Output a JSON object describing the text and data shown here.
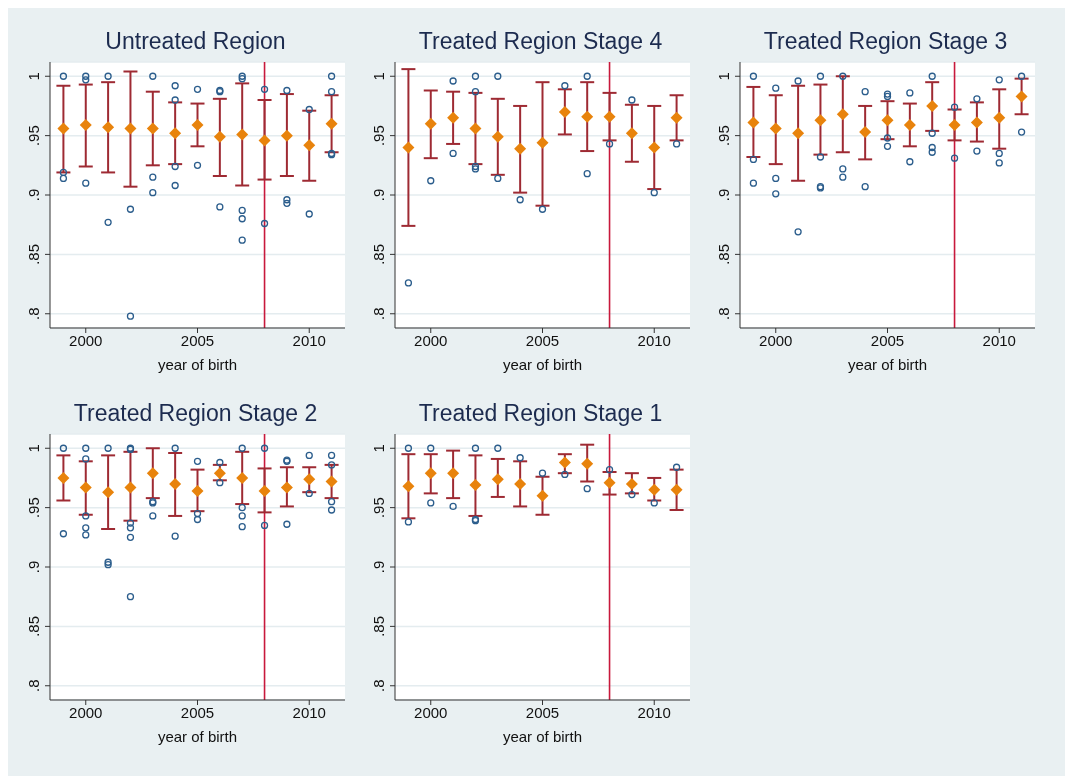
{
  "chart_data": [
    {
      "type": "scatter",
      "title": "Untreated Region",
      "xlabel": "year of birth",
      "xlim": [
        1998.4,
        2011.6
      ],
      "xticks": [
        2000,
        2005,
        2010
      ],
      "ylim": [
        0.788,
        1.012
      ],
      "yticks": [
        {
          "value": 0.8,
          "label": ".8"
        },
        {
          "value": 0.85,
          "label": ".85"
        },
        {
          "value": 0.9,
          "label": ".9"
        },
        {
          "value": 0.95,
          "label": ".95"
        },
        {
          "value": 1,
          "label": "1"
        }
      ],
      "grid": "y",
      "ref_lines": [
        {
          "axis": "x",
          "value": 2008,
          "color": "#c8193c"
        }
      ],
      "series": [
        {
          "type": "scatter",
          "marker": "circle",
          "color": "#2b5d8c",
          "x": [
            1999,
            1999,
            1999,
            2000,
            2000,
            2000,
            2001,
            2001,
            2002,
            2002,
            2003,
            2003,
            2003,
            2004,
            2004,
            2004,
            2004,
            2005,
            2005,
            2006,
            2006,
            2006,
            2007,
            2007,
            2007,
            2007,
            2007,
            2008,
            2008,
            2009,
            2009,
            2009,
            2010,
            2010,
            2011,
            2011,
            2011,
            2011
          ],
          "values": [
            1.0,
            0.919,
            0.914,
            1.0,
            0.997,
            0.91,
            1.0,
            0.877,
            0.888,
            0.798,
            1.0,
            0.915,
            0.902,
            0.992,
            0.98,
            0.924,
            0.908,
            0.989,
            0.925,
            0.988,
            0.987,
            0.89,
            1.0,
            0.998,
            0.887,
            0.88,
            0.862,
            0.989,
            0.876,
            0.988,
            0.896,
            0.893,
            0.972,
            0.884,
            1.0,
            0.987,
            0.935,
            0.934
          ]
        },
        {
          "type": "scatter",
          "marker": "diamond",
          "color": "#e8830c",
          "x": [
            1999,
            2000,
            2001,
            2002,
            2003,
            2004,
            2005,
            2006,
            2007,
            2008,
            2009,
            2010,
            2011
          ],
          "values": [
            0.956,
            0.959,
            0.957,
            0.956,
            0.956,
            0.952,
            0.959,
            0.949,
            0.951,
            0.946,
            0.95,
            0.942,
            0.96
          ],
          "errors": [
            [
              0.919,
              0.992
            ],
            [
              0.924,
              0.993
            ],
            [
              0.919,
              0.995
            ],
            [
              0.907,
              1.004
            ],
            [
              0.925,
              0.987
            ],
            [
              0.926,
              0.978
            ],
            [
              0.941,
              0.977
            ],
            [
              0.916,
              0.981
            ],
            [
              0.908,
              0.994
            ],
            [
              0.913,
              0.98
            ],
            [
              0.916,
              0.985
            ],
            [
              0.912,
              0.971
            ],
            [
              0.936,
              0.984
            ]
          ]
        }
      ]
    },
    {
      "type": "scatter",
      "title": "Treated Region Stage 4",
      "xlabel": "year of birth",
      "xlim": [
        1998.4,
        2011.6
      ],
      "xticks": [
        2000,
        2005,
        2010
      ],
      "ylim": [
        0.788,
        1.012
      ],
      "yticks": [
        {
          "value": 0.8,
          "label": ".8"
        },
        {
          "value": 0.85,
          "label": ".85"
        },
        {
          "value": 0.9,
          "label": ".9"
        },
        {
          "value": 0.95,
          "label": ".95"
        },
        {
          "value": 1,
          "label": "1"
        }
      ],
      "grid": "y",
      "ref_lines": [
        {
          "axis": "x",
          "value": 2008,
          "color": "#c8193c"
        }
      ],
      "series": [
        {
          "type": "scatter",
          "marker": "circle",
          "color": "#2b5d8c",
          "x": [
            1999,
            2000,
            2001,
            2001,
            2002,
            2002,
            2002,
            2002,
            2003,
            2003,
            2004,
            2005,
            2006,
            2007,
            2007,
            2008,
            2009,
            2010,
            2011
          ],
          "values": [
            0.826,
            0.912,
            0.996,
            0.935,
            1.0,
            0.987,
            0.924,
            0.922,
            1.0,
            0.914,
            0.896,
            0.888,
            0.992,
            1.0,
            0.918,
            0.943,
            0.98,
            0.902,
            0.943
          ]
        },
        {
          "type": "scatter",
          "marker": "diamond",
          "color": "#e8830c",
          "x": [
            1999,
            2000,
            2001,
            2002,
            2003,
            2004,
            2005,
            2006,
            2007,
            2008,
            2009,
            2010,
            2011
          ],
          "values": [
            0.94,
            0.96,
            0.965,
            0.956,
            0.949,
            0.939,
            0.944,
            0.97,
            0.966,
            0.966,
            0.952,
            0.94,
            0.965
          ],
          "errors": [
            [
              0.874,
              1.006
            ],
            [
              0.931,
              0.988
            ],
            [
              0.943,
              0.987
            ],
            [
              0.926,
              0.986
            ],
            [
              0.917,
              0.981
            ],
            [
              0.902,
              0.975
            ],
            [
              0.891,
              0.995
            ],
            [
              0.951,
              0.989
            ],
            [
              0.937,
              0.995
            ],
            [
              0.946,
              0.986
            ],
            [
              0.928,
              0.976
            ],
            [
              0.905,
              0.975
            ],
            [
              0.946,
              0.984
            ]
          ]
        }
      ]
    },
    {
      "type": "scatter",
      "title": "Treated Region Stage 3",
      "xlabel": "year of birth",
      "xlim": [
        1998.4,
        2011.6
      ],
      "xticks": [
        2000,
        2005,
        2010
      ],
      "ylim": [
        0.788,
        1.012
      ],
      "yticks": [
        {
          "value": 0.8,
          "label": ".8"
        },
        {
          "value": 0.85,
          "label": ".85"
        },
        {
          "value": 0.9,
          "label": ".9"
        },
        {
          "value": 0.95,
          "label": ".95"
        },
        {
          "value": 1,
          "label": "1"
        }
      ],
      "grid": "y",
      "ref_lines": [
        {
          "axis": "x",
          "value": 2008,
          "color": "#c8193c"
        }
      ],
      "series": [
        {
          "type": "scatter",
          "marker": "circle",
          "color": "#2b5d8c",
          "x": [
            1999,
            1999,
            1999,
            2000,
            2000,
            2000,
            2001,
            2001,
            2002,
            2002,
            2002,
            2002,
            2003,
            2003,
            2003,
            2004,
            2004,
            2005,
            2005,
            2005,
            2005,
            2006,
            2006,
            2007,
            2007,
            2007,
            2007,
            2008,
            2008,
            2009,
            2009,
            2010,
            2010,
            2010,
            2011,
            2011
          ],
          "values": [
            1.0,
            0.93,
            0.91,
            0.99,
            0.914,
            0.901,
            0.996,
            0.869,
            1.0,
            0.932,
            0.907,
            0.906,
            1.0,
            0.922,
            0.915,
            0.987,
            0.907,
            0.985,
            0.983,
            0.948,
            0.941,
            0.986,
            0.928,
            1.0,
            0.952,
            0.94,
            0.936,
            0.974,
            0.931,
            0.981,
            0.937,
            0.997,
            0.935,
            0.927,
            1.0,
            0.953
          ]
        },
        {
          "type": "scatter",
          "marker": "diamond",
          "color": "#e8830c",
          "x": [
            1999,
            2000,
            2001,
            2002,
            2003,
            2004,
            2005,
            2006,
            2007,
            2008,
            2009,
            2010,
            2011
          ],
          "values": [
            0.961,
            0.956,
            0.952,
            0.963,
            0.968,
            0.953,
            0.963,
            0.959,
            0.975,
            0.959,
            0.961,
            0.965,
            0.983
          ],
          "errors": [
            [
              0.932,
              0.991
            ],
            [
              0.926,
              0.984
            ],
            [
              0.912,
              0.992
            ],
            [
              0.934,
              0.993
            ],
            [
              0.936,
              1.0
            ],
            [
              0.93,
              0.975
            ],
            [
              0.947,
              0.979
            ],
            [
              0.941,
              0.977
            ],
            [
              0.954,
              0.995
            ],
            [
              0.946,
              0.972
            ],
            [
              0.945,
              0.978
            ],
            [
              0.939,
              0.989
            ],
            [
              0.968,
              0.998
            ]
          ]
        }
      ]
    },
    {
      "type": "scatter",
      "title": "Treated Region Stage 2",
      "xlabel": "year of birth",
      "xlim": [
        1998.4,
        2011.6
      ],
      "xticks": [
        2000,
        2005,
        2010
      ],
      "ylim": [
        0.788,
        1.012
      ],
      "yticks": [
        {
          "value": 0.8,
          "label": ".8"
        },
        {
          "value": 0.85,
          "label": ".85"
        },
        {
          "value": 0.9,
          "label": ".9"
        },
        {
          "value": 0.95,
          "label": ".95"
        },
        {
          "value": 1,
          "label": "1"
        }
      ],
      "grid": "y",
      "ref_lines": [
        {
          "axis": "x",
          "value": 2008,
          "color": "#c8193c"
        }
      ],
      "series": [
        {
          "type": "scatter",
          "marker": "circle",
          "color": "#2b5d8c",
          "x": [
            1999,
            1999,
            2000,
            2000,
            2000,
            2000,
            2000,
            2001,
            2001,
            2001,
            2002,
            2002,
            2002,
            2002,
            2002,
            2002,
            2003,
            2003,
            2003,
            2004,
            2004,
            2005,
            2005,
            2005,
            2006,
            2006,
            2007,
            2007,
            2007,
            2007,
            2008,
            2008,
            2009,
            2009,
            2009,
            2010,
            2010,
            2011,
            2011,
            2011,
            2011
          ],
          "values": [
            1.0,
            0.928,
            1.0,
            0.991,
            0.943,
            0.933,
            0.927,
            1.0,
            0.904,
            0.902,
            1.0,
            0.999,
            0.937,
            0.933,
            0.925,
            0.875,
            0.955,
            0.954,
            0.943,
            1.0,
            0.926,
            0.989,
            0.945,
            0.94,
            0.988,
            0.971,
            1.0,
            0.95,
            0.943,
            0.934,
            1.0,
            0.935,
            0.99,
            0.989,
            0.936,
            0.994,
            0.962,
            0.994,
            0.986,
            0.955,
            0.948
          ]
        },
        {
          "type": "scatter",
          "marker": "diamond",
          "color": "#e8830c",
          "x": [
            1999,
            2000,
            2001,
            2002,
            2003,
            2004,
            2005,
            2006,
            2007,
            2008,
            2009,
            2010,
            2011
          ],
          "values": [
            0.975,
            0.967,
            0.963,
            0.967,
            0.979,
            0.97,
            0.964,
            0.979,
            0.975,
            0.964,
            0.967,
            0.974,
            0.972
          ],
          "errors": [
            [
              0.956,
              0.994
            ],
            [
              0.944,
              0.989
            ],
            [
              0.932,
              0.994
            ],
            [
              0.939,
              0.997
            ],
            [
              0.958,
              1.0
            ],
            [
              0.943,
              0.996
            ],
            [
              0.947,
              0.982
            ],
            [
              0.973,
              0.986
            ],
            [
              0.953,
              0.997
            ],
            [
              0.946,
              0.983
            ],
            [
              0.951,
              0.984
            ],
            [
              0.963,
              0.984
            ],
            [
              0.958,
              0.986
            ]
          ]
        }
      ]
    },
    {
      "type": "scatter",
      "title": "Treated Region Stage 1",
      "xlabel": "year of birth",
      "xlim": [
        1998.4,
        2011.6
      ],
      "xticks": [
        2000,
        2005,
        2010
      ],
      "ylim": [
        0.788,
        1.012
      ],
      "yticks": [
        {
          "value": 0.8,
          "label": ".8"
        },
        {
          "value": 0.85,
          "label": ".85"
        },
        {
          "value": 0.9,
          "label": ".9"
        },
        {
          "value": 0.95,
          "label": ".95"
        },
        {
          "value": 1,
          "label": "1"
        }
      ],
      "grid": "y",
      "ref_lines": [
        {
          "axis": "x",
          "value": 2008,
          "color": "#c8193c"
        }
      ],
      "series": [
        {
          "type": "scatter",
          "marker": "circle",
          "color": "#2b5d8c",
          "x": [
            1999,
            1999,
            2000,
            2000,
            2001,
            2002,
            2002,
            2002,
            2003,
            2004,
            2005,
            2006,
            2007,
            2008,
            2009,
            2010,
            2011
          ],
          "values": [
            1.0,
            0.938,
            1.0,
            0.954,
            0.951,
            1.0,
            0.94,
            0.939,
            1.0,
            0.992,
            0.979,
            0.978,
            0.966,
            0.982,
            0.961,
            0.954,
            0.984
          ]
        },
        {
          "type": "scatter",
          "marker": "diamond",
          "color": "#e8830c",
          "x": [
            1999,
            2000,
            2001,
            2002,
            2003,
            2004,
            2005,
            2006,
            2007,
            2008,
            2009,
            2010,
            2011
          ],
          "values": [
            0.968,
            0.979,
            0.979,
            0.969,
            0.974,
            0.97,
            0.96,
            0.988,
            0.987,
            0.971,
            0.97,
            0.965,
            0.965
          ],
          "errors": [
            [
              0.941,
              0.995
            ],
            [
              0.962,
              0.995
            ],
            [
              0.958,
              0.998
            ],
            [
              0.943,
              0.994
            ],
            [
              0.959,
              0.991
            ],
            [
              0.951,
              0.989
            ],
            [
              0.944,
              0.976
            ],
            [
              0.979,
              0.995
            ],
            [
              0.972,
              1.003
            ],
            [
              0.961,
              0.98
            ],
            [
              0.962,
              0.979
            ],
            [
              0.956,
              0.975
            ],
            [
              0.948,
              0.982
            ]
          ]
        }
      ]
    }
  ]
}
